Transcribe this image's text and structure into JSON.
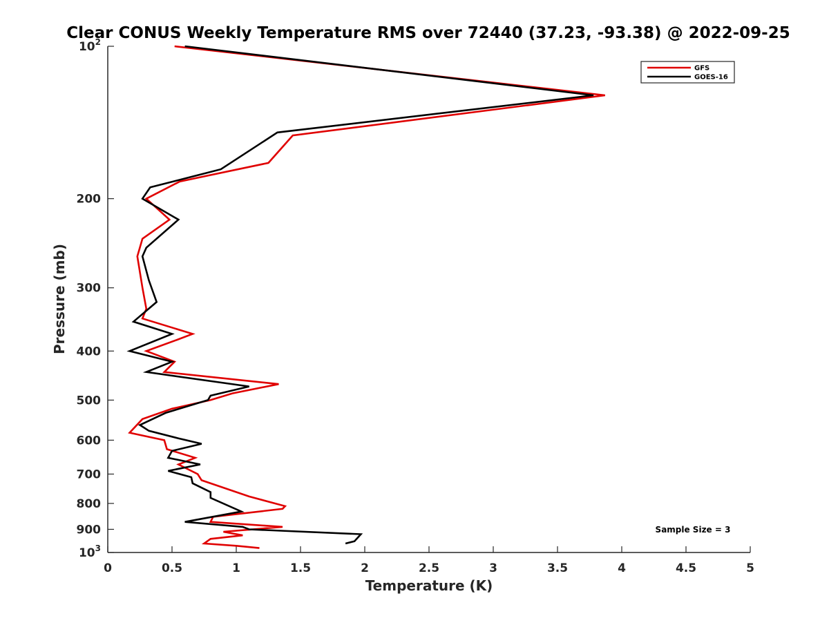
{
  "chart_data": {
    "type": "line",
    "title": "Clear CONUS Weekly Temperature RMS over 72440 (37.23, -93.38) @ 2022-09-25",
    "xlabel": "Temperature (K)",
    "ylabel": "Pressure (mb)",
    "xlim": [
      0,
      5
    ],
    "ylim": [
      100,
      1000
    ],
    "yscale": "log",
    "y_reversed": true,
    "x_ticks": [
      "0",
      "0.5",
      "1",
      "1.5",
      "2",
      "2.5",
      "3",
      "3.5",
      "4",
      "4.5",
      "5"
    ],
    "y_ticks": [
      {
        "value": 100,
        "label": "10",
        "sup": "2"
      },
      {
        "value": 200,
        "label": "200"
      },
      {
        "value": 300,
        "label": "300"
      },
      {
        "value": 400,
        "label": "400"
      },
      {
        "value": 500,
        "label": "500"
      },
      {
        "value": 600,
        "label": "600"
      },
      {
        "value": 700,
        "label": "700"
      },
      {
        "value": 800,
        "label": "800"
      },
      {
        "value": 900,
        "label": "900"
      },
      {
        "value": 1000,
        "label": "10",
        "sup": "3"
      }
    ],
    "legend_position": "top-right",
    "annotation": "Sample Size = 3",
    "series": [
      {
        "name": "GFS",
        "color": "#e00000",
        "points": [
          [
            0.52,
            100
          ],
          [
            3.87,
            125
          ],
          [
            1.44,
            150
          ],
          [
            1.25,
            170
          ],
          [
            0.56,
            185
          ],
          [
            0.3,
            200
          ],
          [
            0.48,
            220
          ],
          [
            0.27,
            240
          ],
          [
            0.23,
            260
          ],
          [
            0.27,
            300
          ],
          [
            0.3,
            330
          ],
          [
            0.27,
            345
          ],
          [
            0.66,
            370
          ],
          [
            0.54,
            380
          ],
          [
            0.3,
            400
          ],
          [
            0.52,
            420
          ],
          [
            0.44,
            440
          ],
          [
            1.33,
            465
          ],
          [
            0.97,
            485
          ],
          [
            0.8,
            500
          ],
          [
            0.5,
            520
          ],
          [
            0.27,
            545
          ],
          [
            0.17,
            580
          ],
          [
            0.44,
            600
          ],
          [
            0.46,
            625
          ],
          [
            0.68,
            650
          ],
          [
            0.55,
            670
          ],
          [
            0.7,
            700
          ],
          [
            0.73,
            720
          ],
          [
            1.1,
            775
          ],
          [
            1.38,
            810
          ],
          [
            1.36,
            820
          ],
          [
            0.82,
            850
          ],
          [
            0.8,
            870
          ],
          [
            1.36,
            890
          ],
          [
            0.9,
            910
          ],
          [
            1.05,
            925
          ],
          [
            0.8,
            940
          ],
          [
            0.75,
            960
          ],
          [
            1.0,
            970
          ],
          [
            1.18,
            980
          ]
        ]
      },
      {
        "name": "GOES-16",
        "color": "#000000",
        "points": [
          [
            0.6,
            100
          ],
          [
            3.78,
            125
          ],
          [
            1.32,
            148
          ],
          [
            0.88,
            175
          ],
          [
            0.33,
            190
          ],
          [
            0.27,
            200
          ],
          [
            0.55,
            220
          ],
          [
            0.3,
            250
          ],
          [
            0.27,
            260
          ],
          [
            0.32,
            290
          ],
          [
            0.38,
            320
          ],
          [
            0.2,
            350
          ],
          [
            0.5,
            370
          ],
          [
            0.17,
            400
          ],
          [
            0.5,
            420
          ],
          [
            0.3,
            440
          ],
          [
            1.1,
            470
          ],
          [
            0.8,
            490
          ],
          [
            0.78,
            500
          ],
          [
            0.45,
            530
          ],
          [
            0.25,
            560
          ],
          [
            0.32,
            575
          ],
          [
            0.55,
            595
          ],
          [
            0.73,
            610
          ],
          [
            0.5,
            630
          ],
          [
            0.47,
            650
          ],
          [
            0.72,
            670
          ],
          [
            0.47,
            690
          ],
          [
            0.65,
            710
          ],
          [
            0.66,
            730
          ],
          [
            0.8,
            760
          ],
          [
            0.8,
            780
          ],
          [
            1.04,
            830
          ],
          [
            0.6,
            870
          ],
          [
            1.05,
            890
          ],
          [
            1.1,
            900
          ],
          [
            1.97,
            920
          ],
          [
            1.92,
            950
          ],
          [
            1.85,
            960
          ]
        ]
      }
    ]
  }
}
